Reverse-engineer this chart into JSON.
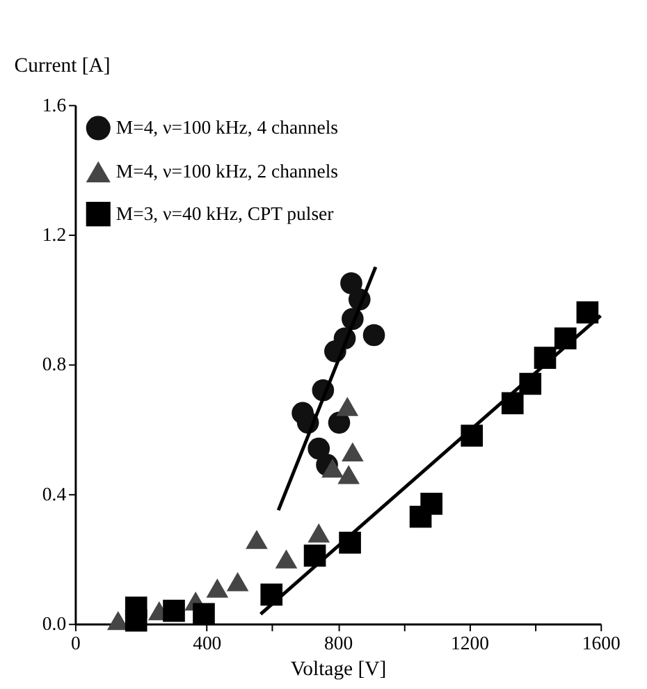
{
  "chart_data": {
    "type": "scatter",
    "xlabel": "Voltage [V]",
    "ylabel": "Current [A]",
    "xlim": [
      0,
      1600
    ],
    "ylim": [
      0,
      1.6
    ],
    "xticks": [
      0,
      {
        "value": 200,
        "label": null
      },
      400,
      {
        "value": 600,
        "label": null
      },
      800,
      {
        "value": 1000,
        "label": null
      },
      1200,
      {
        "value": 1400,
        "label": null
      },
      1600
    ],
    "yticks": [
      {
        "value": 0,
        "label": "0.0"
      },
      0.4,
      0.8,
      1.2,
      1.6
    ],
    "grid": false,
    "legend": "top left",
    "series": [
      {
        "name": "M=4, ν=100 kHz, 4 channels",
        "color": "#111111",
        "marker": "circle",
        "x": [
          841,
          866,
          845,
          910,
          821,
          792,
          755,
          693,
          709,
          804,
          742,
          767
        ],
        "values": [
          1.05,
          1.0,
          0.94,
          0.89,
          0.88,
          0.84,
          0.72,
          0.65,
          0.62,
          0.62,
          0.54,
          0.49
        ]
      },
      {
        "name": "M=4, ν=100 kHz, 2 channels",
        "color": "#454545",
        "marker": "triangle",
        "x": [
          131,
          256,
          367,
          433,
          495,
          553,
          643,
          742,
          784,
          833,
          845,
          829
        ],
        "values": [
          0.01,
          0.04,
          0.07,
          0.11,
          0.13,
          0.26,
          0.2,
          0.28,
          0.48,
          0.46,
          0.53,
          0.67
        ]
      },
      {
        "name": "M=3, ν=40 kHz, CPT pulser",
        "color": "#000000",
        "marker": "square",
        "x": [
          186,
          186,
          301,
          392,
          598,
          730,
          837,
          1052,
          1085,
          1208,
          1332,
          1386,
          1431,
          1493,
          1560
        ],
        "values": [
          0.01,
          0.05,
          0.04,
          0.03,
          0.09,
          0.21,
          0.25,
          0.33,
          0.37,
          0.58,
          0.68,
          0.74,
          0.82,
          0.88,
          0.96
        ]
      },
      {
        "type": "line",
        "color": "#000000",
        "x": [
          619,
          915
        ],
        "values": [
          0.35,
          1.1
        ]
      },
      {
        "type": "line",
        "color": "#000000",
        "x": [
          565,
          1600
        ],
        "values": [
          0.03,
          0.95
        ]
      }
    ]
  }
}
